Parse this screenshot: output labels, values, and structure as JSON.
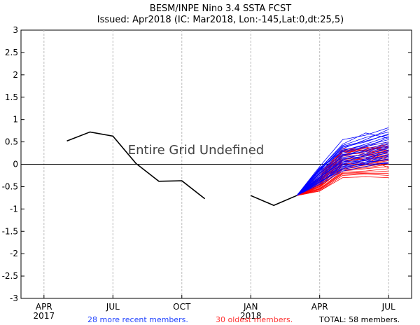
{
  "chart_data": {
    "type": "line",
    "title": "BESM/INPE Nino 3.4 SSTA FCST",
    "subtitle": "Issued: Apr2018 (IC: Mar2018, Lon:-145,Lat:0,dt:25,5)",
    "annotation": "Entire Grid Undefined",
    "ylim": [
      -3,
      3
    ],
    "yticks": [
      "3",
      "2.5",
      "2",
      "1.5",
      "1",
      "0.5",
      "0",
      "-0.5",
      "-1",
      "-1.5",
      "-2",
      "-2.5",
      "-3"
    ],
    "xticks": [
      {
        "label": "APR",
        "sub": "2017",
        "month": 0
      },
      {
        "label": "JUL",
        "sub": "",
        "month": 3
      },
      {
        "label": "OCT",
        "sub": "",
        "month": 6
      },
      {
        "label": "JAN",
        "sub": "2018",
        "month": 9
      },
      {
        "label": "APR",
        "sub": "",
        "month": 12
      },
      {
        "label": "JUL",
        "sub": "",
        "month": 15
      }
    ],
    "xlim": [
      -1,
      16
    ],
    "observed": [
      {
        "month": 1,
        "value": 0.52
      },
      {
        "month": 2,
        "value": 0.72
      },
      {
        "month": 3,
        "value": 0.63
      },
      {
        "month": 4,
        "value": 0.02
      },
      {
        "month": 5,
        "value": -0.38
      },
      {
        "month": 6,
        "value": -0.37
      },
      {
        "month": 7,
        "value": -0.77
      },
      null,
      {
        "month": 9,
        "value": -0.7
      },
      {
        "month": 10,
        "value": -0.92
      },
      {
        "month": 11,
        "value": -0.7
      }
    ],
    "ensemble": {
      "start_month": 11,
      "start_value": -0.7,
      "months": [
        12,
        13,
        14,
        15
      ],
      "recent_color": "#0000ff",
      "oldest_color": "#ff0000",
      "recent_members": [
        [
          -0.12,
          0.35,
          0.55,
          0.78
        ],
        [
          -0.05,
          0.55,
          0.65,
          0.82
        ],
        [
          -0.1,
          0.42,
          0.6,
          0.72
        ],
        [
          -0.15,
          0.38,
          0.5,
          0.68
        ],
        [
          -0.08,
          0.3,
          0.45,
          0.62
        ],
        [
          -0.2,
          0.25,
          0.38,
          0.6
        ],
        [
          -0.18,
          0.32,
          0.42,
          0.55
        ],
        [
          -0.1,
          0.28,
          0.4,
          0.5
        ],
        [
          -0.22,
          0.2,
          0.33,
          0.48
        ],
        [
          -0.25,
          0.18,
          0.3,
          0.45
        ],
        [
          -0.15,
          0.22,
          0.28,
          0.42
        ],
        [
          -0.28,
          0.1,
          0.25,
          0.4
        ],
        [
          -0.3,
          0.05,
          0.2,
          0.38
        ],
        [
          -0.2,
          0.15,
          0.22,
          0.35
        ],
        [
          -0.32,
          0.0,
          0.12,
          0.32
        ],
        [
          -0.25,
          0.12,
          0.18,
          0.3
        ],
        [
          -0.35,
          -0.05,
          0.1,
          0.28
        ],
        [
          -0.3,
          0.08,
          0.15,
          0.25
        ],
        [
          -0.38,
          -0.1,
          0.05,
          0.22
        ],
        [
          -0.28,
          0.05,
          0.1,
          0.2
        ],
        [
          -0.4,
          -0.12,
          0.0,
          0.18
        ],
        [
          -0.33,
          0.02,
          0.08,
          0.15
        ],
        [
          -0.42,
          -0.08,
          0.02,
          0.12
        ],
        [
          -0.36,
          -0.02,
          0.05,
          0.1
        ],
        [
          -0.45,
          -0.15,
          -0.05,
          0.05
        ],
        [
          -0.4,
          -0.05,
          0.0,
          0.02
        ],
        [
          -0.1,
          0.45,
          0.7,
          0.58
        ],
        [
          -0.14,
          0.4,
          0.52,
          0.66
        ]
      ],
      "oldest_members": [
        [
          -0.2,
          0.3,
          0.35,
          0.45
        ],
        [
          -0.25,
          0.28,
          0.3,
          0.42
        ],
        [
          -0.22,
          0.25,
          0.32,
          0.38
        ],
        [
          -0.3,
          0.2,
          0.28,
          0.35
        ],
        [
          -0.28,
          0.22,
          0.25,
          0.32
        ],
        [
          -0.35,
          0.15,
          0.22,
          0.3
        ],
        [
          -0.32,
          0.18,
          0.2,
          0.28
        ],
        [
          -0.38,
          0.1,
          0.18,
          0.25
        ],
        [
          -0.36,
          0.12,
          0.15,
          0.22
        ],
        [
          -0.4,
          0.08,
          0.12,
          0.2
        ],
        [
          -0.42,
          0.05,
          0.1,
          0.18
        ],
        [
          -0.45,
          0.02,
          0.08,
          0.15
        ],
        [
          -0.44,
          0.0,
          0.05,
          0.12
        ],
        [
          -0.48,
          -0.02,
          0.02,
          0.1
        ],
        [
          -0.46,
          -0.05,
          0.0,
          0.08
        ],
        [
          -0.5,
          -0.08,
          -0.02,
          0.05
        ],
        [
          -0.52,
          -0.1,
          -0.05,
          0.02
        ],
        [
          -0.5,
          -0.12,
          -0.08,
          0.0
        ],
        [
          -0.55,
          -0.15,
          -0.1,
          -0.05
        ],
        [
          -0.54,
          -0.18,
          -0.15,
          -0.1
        ],
        [
          -0.56,
          -0.2,
          -0.18,
          -0.15
        ],
        [
          -0.58,
          -0.22,
          -0.2,
          -0.2
        ],
        [
          -0.6,
          -0.25,
          -0.22,
          -0.25
        ],
        [
          -0.6,
          -0.3,
          -0.28,
          -0.3
        ],
        [
          -0.3,
          0.35,
          0.3,
          0.25
        ],
        [
          -0.35,
          0.28,
          0.35,
          0.4
        ],
        [
          -0.4,
          0.2,
          0.4,
          0.5
        ],
        [
          -0.33,
          0.32,
          0.38,
          0.3
        ],
        [
          -0.45,
          0.1,
          0.25,
          0.1
        ],
        [
          -0.5,
          0.05,
          0.15,
          -0.08
        ]
      ]
    },
    "legend": {
      "recent": "28 more recent members.",
      "oldest": "30 oldest members.",
      "total": "TOTAL: 58 members."
    }
  }
}
